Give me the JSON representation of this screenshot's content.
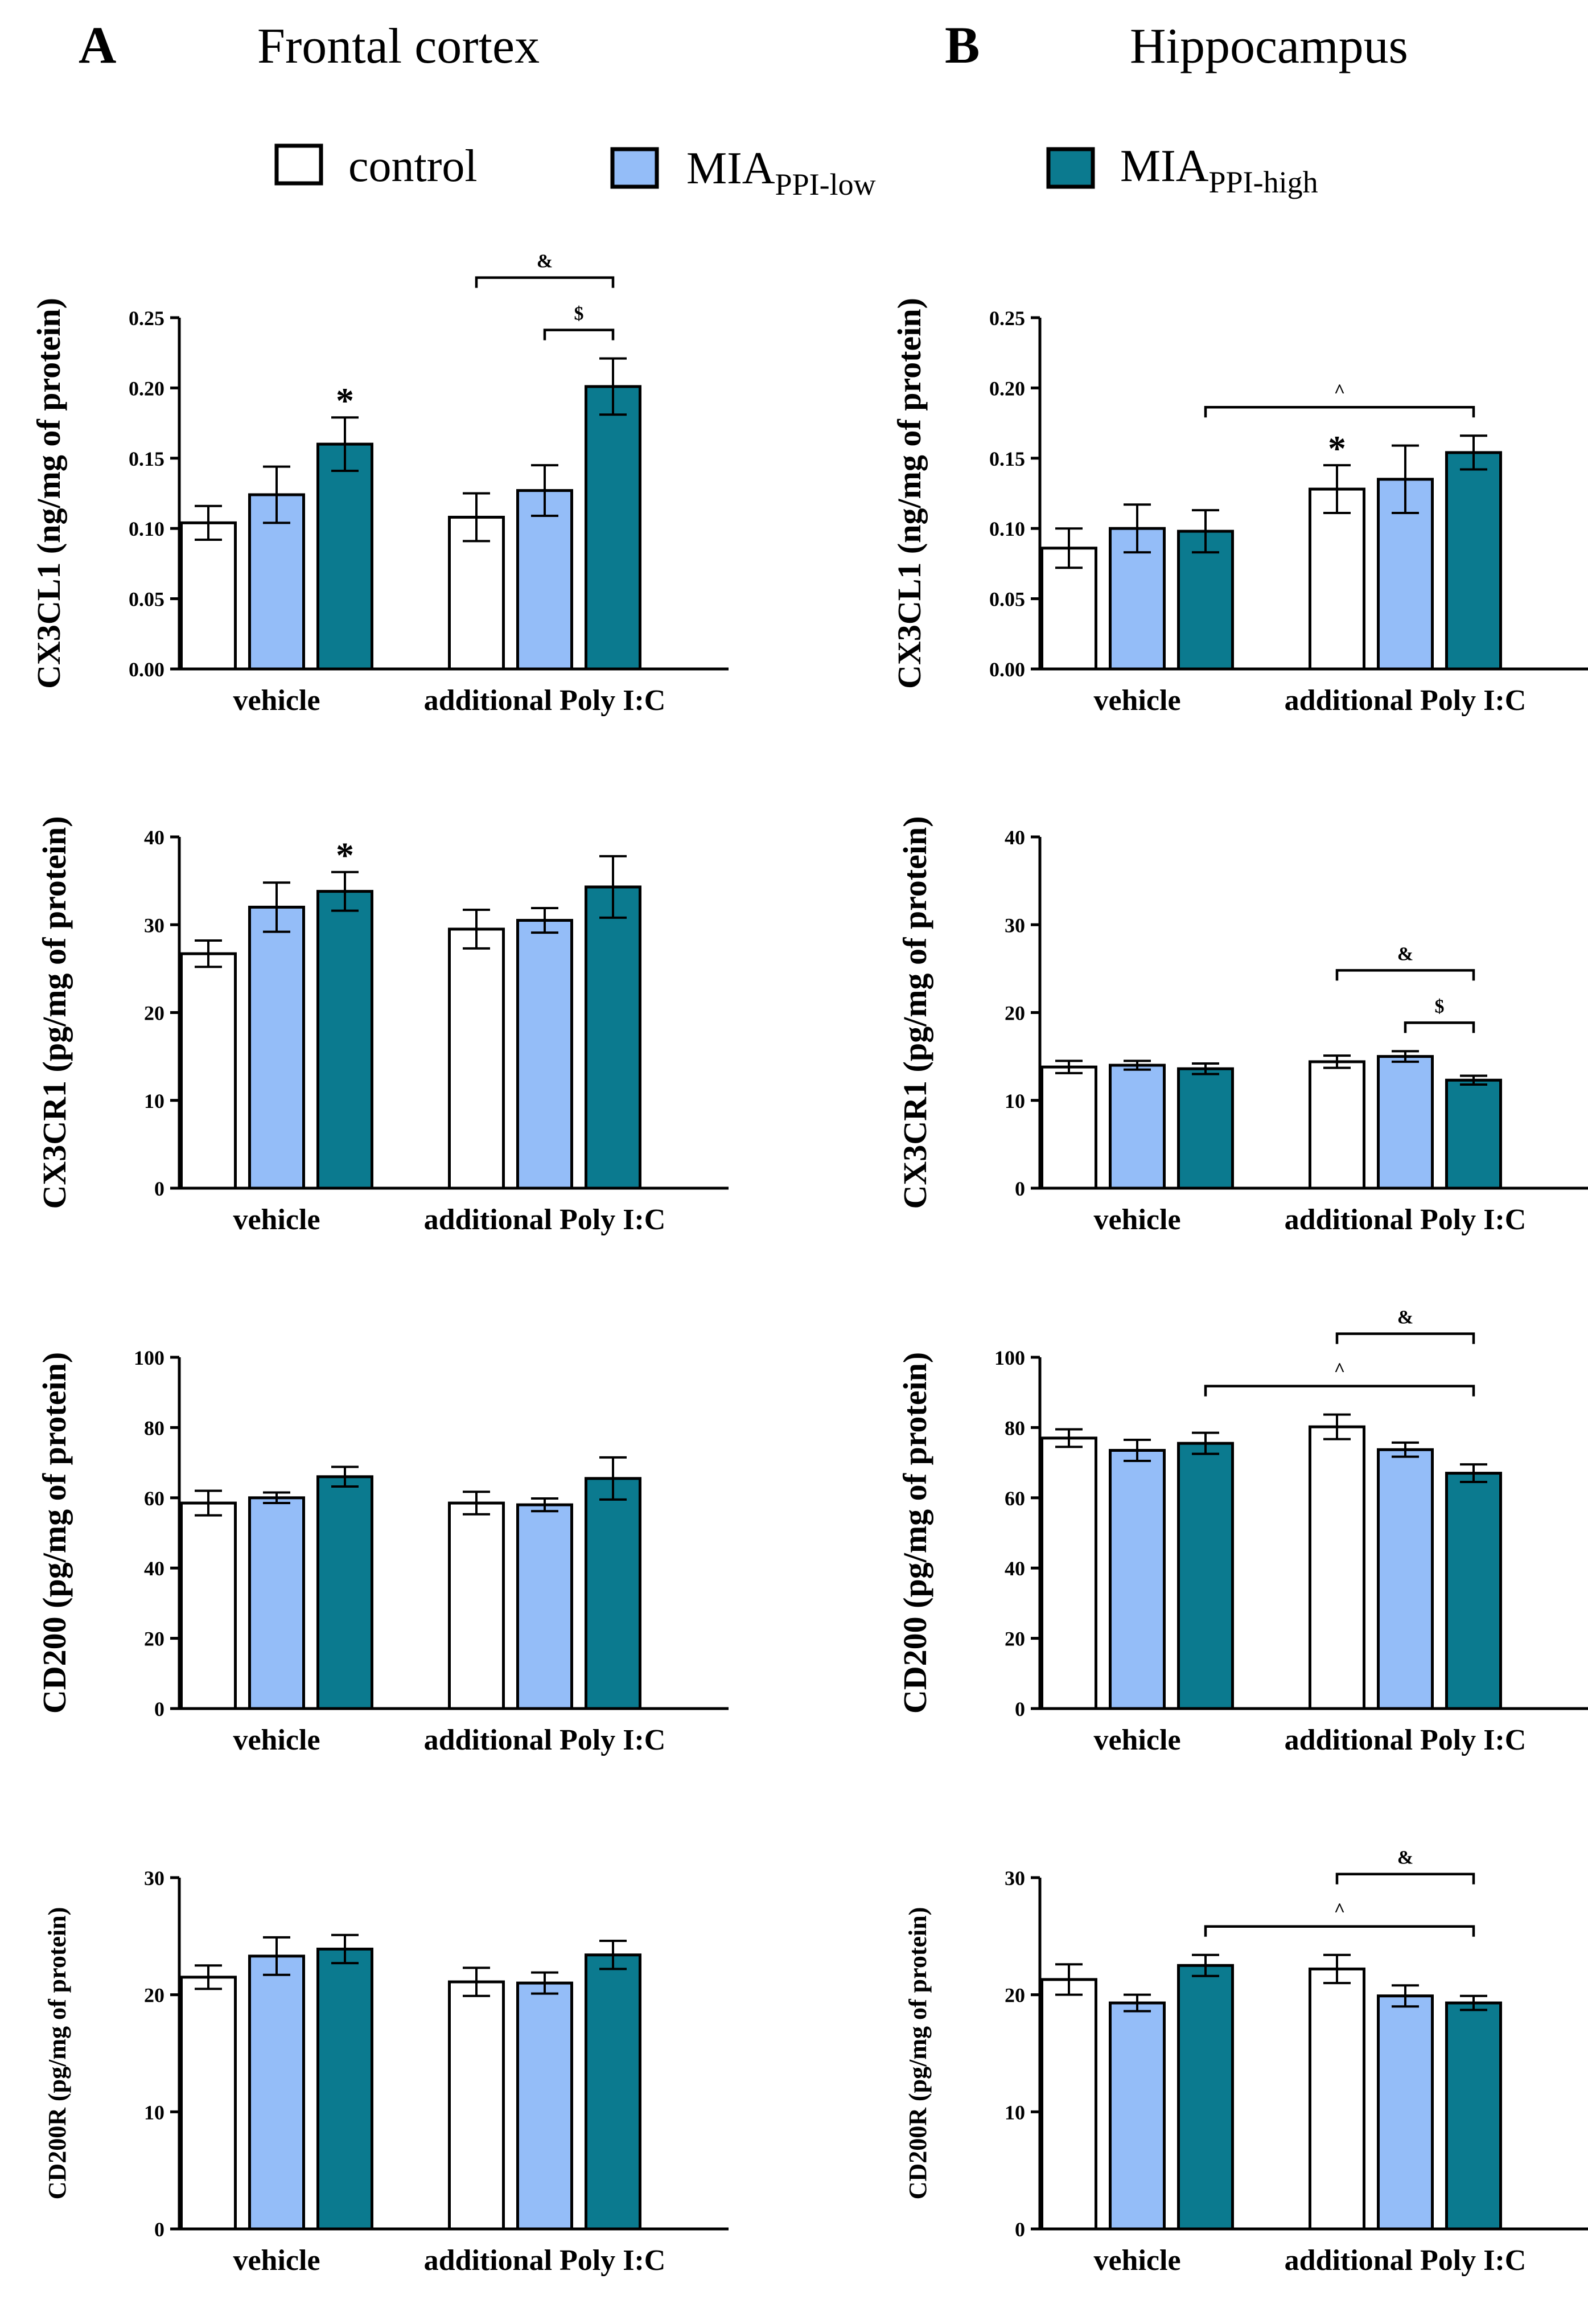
{
  "figure": {
    "panels": [
      {
        "letter": "A",
        "title": "Frontal cortex"
      },
      {
        "letter": "B",
        "title": "Hippocampus"
      }
    ],
    "legend": [
      {
        "label": "control",
        "sub": "",
        "color": "#ffffff"
      },
      {
        "label": "MIA",
        "sub": "PPI-low",
        "color": "#94bdf8"
      },
      {
        "label": "MIA",
        "sub": "PPI-high",
        "color": "#0b7a8f"
      }
    ],
    "colors": {
      "control": "#ffffff",
      "low": "#94bdf8",
      "high": "#0b7a8f",
      "stroke": "#000000"
    }
  },
  "chart_data": [
    {
      "type": "bar",
      "panel": "A",
      "region": "Frontal cortex",
      "ylabel": "CX3CL1 (ng/mg of protein)",
      "ylim": [
        0,
        0.25
      ],
      "yticks": [
        "0.00",
        "0.05",
        "0.10",
        "0.15",
        "0.20",
        "0.25"
      ],
      "categories": [
        "vehicle",
        "additional Poly I:C"
      ],
      "series": [
        {
          "name": "control",
          "values": [
            0.104,
            0.108
          ],
          "errors": [
            0.012,
            0.017
          ]
        },
        {
          "name": "MIA PPI-low",
          "values": [
            0.124,
            0.127
          ],
          "errors": [
            0.02,
            0.018
          ]
        },
        {
          "name": "MIA PPI-high",
          "values": [
            0.16,
            0.201
          ],
          "errors": [
            0.019,
            0.02
          ]
        }
      ],
      "annotations": [
        {
          "symbol": "*",
          "category": 0,
          "series": 2
        },
        {
          "symbol": "&",
          "from": [
            1,
            0
          ],
          "to": [
            1,
            2
          ],
          "level": 0
        },
        {
          "symbol": "$",
          "from": [
            1,
            1
          ],
          "to": [
            1,
            2
          ],
          "level": 1
        }
      ]
    },
    {
      "type": "bar",
      "panel": "A",
      "region": "Frontal cortex",
      "ylabel": "CX3CR1 (pg/mg of protein)",
      "ylim": [
        0,
        40
      ],
      "yticks": [
        "0",
        "10",
        "20",
        "30",
        "40"
      ],
      "categories": [
        "vehicle",
        "additional Poly I:C"
      ],
      "series": [
        {
          "name": "control",
          "values": [
            26.7,
            29.5
          ],
          "errors": [
            1.5,
            2.2
          ]
        },
        {
          "name": "MIA PPI-low",
          "values": [
            32.0,
            30.5
          ],
          "errors": [
            2.8,
            1.4
          ]
        },
        {
          "name": "MIA PPI-high",
          "values": [
            33.8,
            34.3
          ],
          "errors": [
            2.2,
            3.5
          ]
        }
      ],
      "annotations": [
        {
          "symbol": "*",
          "category": 0,
          "series": 2
        }
      ]
    },
    {
      "type": "bar",
      "panel": "A",
      "region": "Frontal cortex",
      "ylabel": "CD200 (pg/mg of protein)",
      "ylim": [
        0,
        100
      ],
      "yticks": [
        "0",
        "20",
        "40",
        "60",
        "80",
        "100"
      ],
      "categories": [
        "vehicle",
        "additional Poly I:C"
      ],
      "series": [
        {
          "name": "control",
          "values": [
            58.5,
            58.5
          ],
          "errors": [
            3.5,
            3.2
          ]
        },
        {
          "name": "MIA PPI-low",
          "values": [
            60.0,
            58.0
          ],
          "errors": [
            1.5,
            1.8
          ]
        },
        {
          "name": "MIA PPI-high",
          "values": [
            66.0,
            65.5
          ],
          "errors": [
            2.8,
            6.0
          ]
        }
      ],
      "annotations": []
    },
    {
      "type": "bar",
      "panel": "A",
      "region": "Frontal cortex",
      "ylabel": "CD200R (pg/mg of protein)",
      "ylim": [
        0,
        30
      ],
      "yticks": [
        "0",
        "10",
        "20",
        "30"
      ],
      "categories": [
        "vehicle",
        "additional Poly I:C"
      ],
      "series": [
        {
          "name": "control",
          "values": [
            21.5,
            21.1
          ],
          "errors": [
            1.0,
            1.2
          ]
        },
        {
          "name": "MIA PPI-low",
          "values": [
            23.3,
            21.0
          ],
          "errors": [
            1.6,
            0.9
          ]
        },
        {
          "name": "MIA PPI-high",
          "values": [
            23.9,
            23.4
          ],
          "errors": [
            1.2,
            1.2
          ]
        }
      ],
      "annotations": []
    },
    {
      "type": "bar",
      "panel": "B",
      "region": "Hippocampus",
      "ylabel": "CX3CL1 (ng/mg of protein)",
      "ylim": [
        0,
        0.25
      ],
      "yticks": [
        "0.00",
        "0.05",
        "0.10",
        "0.15",
        "0.20",
        "0.25"
      ],
      "categories": [
        "vehicle",
        "additional Poly I:C"
      ],
      "series": [
        {
          "name": "control",
          "values": [
            0.086,
            0.128
          ],
          "errors": [
            0.014,
            0.017
          ]
        },
        {
          "name": "MIA PPI-low",
          "values": [
            0.1,
            0.135
          ],
          "errors": [
            0.017,
            0.024
          ]
        },
        {
          "name": "MIA PPI-high",
          "values": [
            0.098,
            0.154
          ],
          "errors": [
            0.015,
            0.012
          ]
        }
      ],
      "annotations": [
        {
          "symbol": "*",
          "category": 1,
          "series": 0
        },
        {
          "symbol": "^",
          "from": [
            0,
            2
          ],
          "to": [
            1,
            2
          ],
          "level": 0
        }
      ]
    },
    {
      "type": "bar",
      "panel": "B",
      "region": "Hippocampus",
      "ylabel": "CX3CR1 (pg/mg of protein)",
      "ylim": [
        0,
        40
      ],
      "yticks": [
        "0",
        "10",
        "20",
        "30",
        "40"
      ],
      "categories": [
        "vehicle",
        "additional Poly I:C"
      ],
      "series": [
        {
          "name": "control",
          "values": [
            13.8,
            14.4
          ],
          "errors": [
            0.7,
            0.7
          ]
        },
        {
          "name": "MIA PPI-low",
          "values": [
            14.0,
            15.0
          ],
          "errors": [
            0.5,
            0.6
          ]
        },
        {
          "name": "MIA PPI-high",
          "values": [
            13.6,
            12.3
          ],
          "errors": [
            0.6,
            0.5
          ]
        }
      ],
      "annotations": [
        {
          "symbol": "&",
          "from": [
            1,
            0
          ],
          "to": [
            1,
            2
          ],
          "level": 0
        },
        {
          "symbol": "$",
          "from": [
            1,
            1
          ],
          "to": [
            1,
            2
          ],
          "level": 1
        }
      ]
    },
    {
      "type": "bar",
      "panel": "B",
      "region": "Hippocampus",
      "ylabel": "CD200 (pg/mg of protein)",
      "ylim": [
        0,
        100
      ],
      "yticks": [
        "0",
        "20",
        "40",
        "60",
        "80",
        "100"
      ],
      "categories": [
        "vehicle",
        "additional Poly I:C"
      ],
      "series": [
        {
          "name": "control",
          "values": [
            77.0,
            80.2
          ],
          "errors": [
            2.5,
            3.5
          ]
        },
        {
          "name": "MIA PPI-low",
          "values": [
            73.5,
            73.7
          ],
          "errors": [
            3.0,
            2.0
          ]
        },
        {
          "name": "MIA PPI-high",
          "values": [
            75.5,
            67.0
          ],
          "errors": [
            3.0,
            2.5
          ]
        }
      ],
      "annotations": [
        {
          "symbol": "&",
          "from": [
            1,
            0
          ],
          "to": [
            1,
            2
          ],
          "level": 0
        },
        {
          "symbol": "^",
          "from": [
            0,
            2
          ],
          "to": [
            1,
            2
          ],
          "level": 1
        }
      ]
    },
    {
      "type": "bar",
      "panel": "B",
      "region": "Hippocampus",
      "ylabel": "CD200R (pg/mg of protein)",
      "ylim": [
        0,
        30
      ],
      "yticks": [
        "0",
        "10",
        "20",
        "30"
      ],
      "categories": [
        "vehicle",
        "additional Poly I:C"
      ],
      "series": [
        {
          "name": "control",
          "values": [
            21.3,
            22.2
          ],
          "errors": [
            1.3,
            1.2
          ]
        },
        {
          "name": "MIA PPI-low",
          "values": [
            19.3,
            19.9
          ],
          "errors": [
            0.7,
            0.9
          ]
        },
        {
          "name": "MIA PPI-high",
          "values": [
            22.5,
            19.3
          ],
          "errors": [
            0.9,
            0.6
          ]
        }
      ],
      "annotations": [
        {
          "symbol": "&",
          "from": [
            1,
            0
          ],
          "to": [
            1,
            2
          ],
          "level": 0
        },
        {
          "symbol": "^",
          "from": [
            0,
            2
          ],
          "to": [
            1,
            2
          ],
          "level": 1
        }
      ]
    }
  ]
}
